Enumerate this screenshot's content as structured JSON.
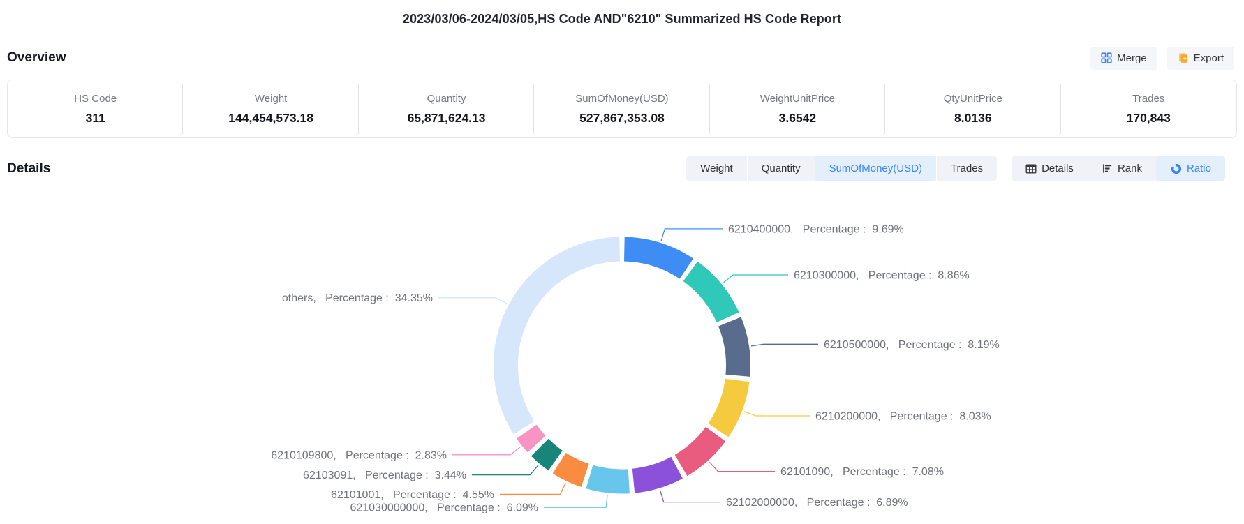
{
  "page_title": "2023/03/06-2024/03/05,HS Code AND\"6210\" Summarized HS Code Report",
  "overview": {
    "heading": "Overview",
    "merge_label": "Merge",
    "export_label": "Export",
    "stats": [
      {
        "label": "HS Code",
        "value": "311"
      },
      {
        "label": "Weight",
        "value": "144,454,573.18"
      },
      {
        "label": "Quantity",
        "value": "65,871,624.13"
      },
      {
        "label": "SumOfMoney(USD)",
        "value": "527,867,353.08"
      },
      {
        "label": "WeightUnitPrice",
        "value": "3.6542"
      },
      {
        "label": "QtyUnitPrice",
        "value": "8.0136"
      },
      {
        "label": "Trades",
        "value": "170,843"
      }
    ]
  },
  "details": {
    "heading": "Details",
    "metric_tabs": [
      {
        "label": "Weight",
        "selected": false
      },
      {
        "label": "Quantity",
        "selected": false
      },
      {
        "label": "SumOfMoney(USD)",
        "selected": true
      },
      {
        "label": "Trades",
        "selected": false
      }
    ],
    "view_tabs": [
      {
        "label": "Details",
        "icon": "table-icon",
        "selected": false
      },
      {
        "label": "Rank",
        "icon": "rank-icon",
        "selected": false
      },
      {
        "label": "Ratio",
        "icon": "donut-icon",
        "selected": true
      }
    ]
  },
  "colors": {
    "accent_blue": "#3a86f0",
    "selected_tab_bg": "#e4effc",
    "export_icon_orange": "#f6a928",
    "label_text": "#6f7277"
  },
  "chart_data": {
    "type": "pie",
    "subtype": "donut",
    "title": "",
    "legend": "none",
    "label_format": "{name},  Percentage :  {value}%",
    "start_angle_deg": 0,
    "direction": "clockwise",
    "slices": [
      {
        "name": "6210400000",
        "value": 9.69,
        "color": "#3d8df5"
      },
      {
        "name": "6210300000",
        "value": 8.86,
        "color": "#2fc8b9"
      },
      {
        "name": "6210500000",
        "value": 8.19,
        "color": "#5a6c8e"
      },
      {
        "name": "6210200000",
        "value": 8.03,
        "color": "#f6ca3e"
      },
      {
        "name": "62101090",
        "value": 7.08,
        "color": "#e95c7f"
      },
      {
        "name": "62102000000",
        "value": 6.89,
        "color": "#8b51db"
      },
      {
        "name": "621030000000",
        "value": 6.09,
        "color": "#68c5ec"
      },
      {
        "name": "62101001",
        "value": 4.55,
        "color": "#f98c40"
      },
      {
        "name": "62103091",
        "value": 3.44,
        "color": "#17857a"
      },
      {
        "name": "6210109800",
        "value": 2.83,
        "color": "#f893c3"
      },
      {
        "name": "others",
        "value": 34.35,
        "color": "#d7e7fb"
      }
    ]
  }
}
